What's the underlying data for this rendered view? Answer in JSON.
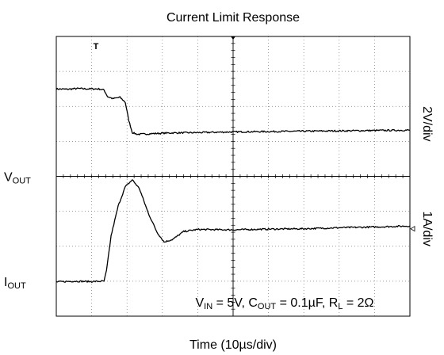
{
  "chart_data": {
    "type": "line",
    "title": "Current Limit Response",
    "xlabel": "Time (10µs/div)",
    "x_divisions": 10,
    "y_divisions": 8,
    "xlim": [
      0,
      10
    ],
    "ylim": [
      0,
      8
    ],
    "grid": true,
    "trigger_marker": "T",
    "channels": [
      {
        "label_main": "V",
        "label_sub": "OUT",
        "scale": "2V/div",
        "ground_level_div": 4,
        "points": [
          [
            0.0,
            6.5
          ],
          [
            0.3,
            6.49
          ],
          [
            0.6,
            6.51
          ],
          [
            0.9,
            6.5
          ],
          [
            1.2,
            6.5
          ],
          [
            1.35,
            6.47
          ],
          [
            1.45,
            6.28
          ],
          [
            1.6,
            6.22
          ],
          [
            1.8,
            6.26
          ],
          [
            1.95,
            6.12
          ],
          [
            2.05,
            5.6
          ],
          [
            2.15,
            5.25
          ],
          [
            2.3,
            5.2
          ],
          [
            2.7,
            5.22
          ],
          [
            3.2,
            5.24
          ],
          [
            4.0,
            5.25
          ],
          [
            5.0,
            5.27
          ],
          [
            6.0,
            5.28
          ],
          [
            7.0,
            5.29
          ],
          [
            8.0,
            5.3
          ],
          [
            9.0,
            5.31
          ],
          [
            10.0,
            5.32
          ]
        ]
      },
      {
        "label_main": "I",
        "label_sub": "OUT",
        "scale": "1A/div",
        "ground_level_div": 1.0,
        "points": [
          [
            0.0,
            0.98
          ],
          [
            0.5,
            1.0
          ],
          [
            1.0,
            0.99
          ],
          [
            1.35,
            1.0
          ],
          [
            1.42,
            1.3
          ],
          [
            1.55,
            2.3
          ],
          [
            1.75,
            3.15
          ],
          [
            1.95,
            3.7
          ],
          [
            2.15,
            3.9
          ],
          [
            2.35,
            3.65
          ],
          [
            2.6,
            2.95
          ],
          [
            2.85,
            2.4
          ],
          [
            3.05,
            2.12
          ],
          [
            3.3,
            2.2
          ],
          [
            3.6,
            2.42
          ],
          [
            4.0,
            2.48
          ],
          [
            5.0,
            2.47
          ],
          [
            6.0,
            2.49
          ],
          [
            7.0,
            2.5
          ],
          [
            8.0,
            2.53
          ],
          [
            9.0,
            2.55
          ],
          [
            10.0,
            2.58
          ]
        ]
      }
    ],
    "annotation": {
      "parts": [
        {
          "t": "V",
          "sub": false
        },
        {
          "t": "IN",
          "sub": true
        },
        {
          "t": " = 5V, C",
          "sub": false
        },
        {
          "t": "OUT",
          "sub": true
        },
        {
          "t": " = 0.1µF, R",
          "sub": false
        },
        {
          "t": "L",
          "sub": true
        },
        {
          "t": " = 2Ω",
          "sub": false
        }
      ]
    }
  }
}
